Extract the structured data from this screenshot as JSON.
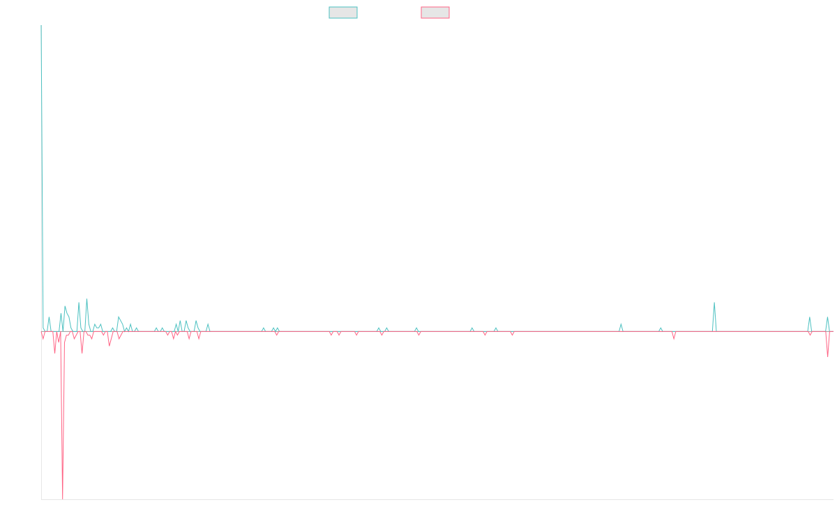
{
  "chart_data": {
    "type": "line",
    "title": "",
    "xlabel": "",
    "ylabel": "",
    "grid": false,
    "legend": "top-center",
    "ylim": [
      -46,
      84
    ],
    "series": [
      {
        "name": "",
        "color": "#4bc0c0",
        "fill": "#e6e6e6",
        "values": [
          84,
          1,
          0,
          0,
          4,
          0,
          0,
          0,
          0,
          0,
          5,
          0,
          7,
          5,
          4,
          1,
          0,
          0,
          0,
          8,
          1,
          0,
          0,
          9,
          2,
          0,
          0,
          2,
          1,
          1,
          2,
          0,
          0,
          0,
          0,
          0,
          1,
          0,
          0,
          4,
          3,
          2,
          0,
          1,
          0,
          2,
          0,
          0,
          1,
          0,
          0,
          0,
          0,
          0,
          0,
          0,
          0,
          0,
          1,
          0,
          0,
          1,
          0,
          0,
          0,
          0,
          0,
          0,
          2,
          0,
          3,
          0,
          0,
          3,
          1,
          0,
          0,
          0,
          3,
          1,
          0,
          0,
          0,
          0,
          2,
          0,
          0,
          0,
          0,
          0,
          0,
          0,
          0,
          0,
          0,
          0,
          0,
          0,
          0,
          0,
          0,
          0,
          0,
          0,
          0,
          0,
          0,
          0,
          0,
          0,
          0,
          0,
          1,
          0,
          0,
          0,
          0,
          1,
          0,
          1,
          0,
          0,
          0,
          0,
          0,
          0,
          0,
          0,
          0,
          0,
          0,
          0,
          0,
          0,
          0,
          0,
          0,
          0,
          0,
          0,
          0,
          0,
          0,
          0,
          0,
          0,
          0,
          0,
          0,
          0,
          0,
          0,
          0,
          0,
          0,
          0,
          0,
          0,
          0,
          0,
          0,
          0,
          0,
          0,
          0,
          0,
          0,
          0,
          0,
          0,
          1,
          0,
          0,
          0,
          1,
          0,
          0,
          0,
          0,
          0,
          0,
          0,
          0,
          0,
          0,
          0,
          0,
          0,
          0,
          1,
          0,
          0,
          0,
          0,
          0,
          0,
          0,
          0,
          0,
          0,
          0,
          0,
          0,
          0,
          0,
          0,
          0,
          0,
          0,
          0,
          0,
          0,
          0,
          0,
          0,
          0,
          0,
          1,
          0,
          0,
          0,
          0,
          0,
          0,
          0,
          0,
          0,
          0,
          0,
          1,
          0,
          0,
          0,
          0,
          0,
          0,
          0,
          0,
          0,
          0,
          0,
          0,
          0,
          0,
          0,
          0,
          0,
          0,
          0,
          0,
          0,
          0,
          0,
          0,
          0,
          0,
          0,
          0,
          0,
          0,
          0,
          0,
          0,
          0,
          0,
          0,
          0,
          0,
          0,
          0,
          0,
          0,
          0,
          0,
          0,
          0,
          0,
          0,
          0,
          0,
          0,
          0,
          0,
          0,
          0,
          0,
          0,
          0,
          0,
          0,
          0,
          0,
          2,
          0,
          0,
          0,
          0,
          0,
          0,
          0,
          0,
          0,
          0,
          0,
          0,
          0,
          0,
          0,
          0,
          0,
          0,
          0,
          1,
          0,
          0,
          0,
          0,
          0,
          0,
          0,
          0,
          0,
          0,
          0,
          0,
          0,
          0,
          0,
          0,
          0,
          0,
          0,
          0,
          0,
          0,
          0,
          0,
          0,
          0,
          8,
          0,
          0,
          0,
          0,
          0,
          0,
          0,
          0,
          0,
          0,
          0,
          0,
          0,
          0,
          0,
          0,
          0,
          0,
          0,
          0,
          0,
          0,
          0,
          0,
          0,
          0,
          0,
          0,
          0,
          0,
          0,
          0,
          0,
          0,
          0,
          0,
          0,
          0,
          0,
          0,
          0,
          0,
          0,
          0,
          0,
          0,
          0,
          4,
          0,
          0,
          0,
          0,
          0,
          0,
          0,
          0,
          4,
          0,
          0,
          0
        ]
      },
      {
        "name": "",
        "color": "#ff6384",
        "fill": "#e6e6e6",
        "values": [
          0,
          -2,
          0,
          0,
          0,
          0,
          0,
          -6,
          0,
          -3,
          0,
          -46,
          -3,
          -1,
          -1,
          0,
          0,
          -2,
          -1,
          0,
          0,
          -6,
          0,
          0,
          -1,
          -1,
          -2,
          0,
          0,
          0,
          0,
          0,
          -1,
          0,
          0,
          -4,
          -2,
          0,
          0,
          0,
          -2,
          -1,
          0,
          0,
          0,
          0,
          0,
          0,
          0,
          0,
          0,
          0,
          0,
          0,
          0,
          0,
          0,
          0,
          0,
          0,
          0,
          0,
          0,
          0,
          0,
          -1,
          0,
          0,
          -2,
          0,
          -1,
          0,
          0,
          0,
          0,
          0,
          -2,
          0,
          0,
          0,
          0,
          -2,
          0,
          0,
          0,
          0,
          0,
          0,
          0,
          0,
          0,
          0,
          0,
          0,
          0,
          0,
          0,
          0,
          0,
          0,
          0,
          0,
          0,
          0,
          0,
          0,
          0,
          0,
          0,
          0,
          0,
          0,
          0,
          0,
          0,
          0,
          0,
          0,
          0,
          0,
          0,
          -1,
          0,
          0,
          0,
          0,
          0,
          0,
          0,
          0,
          0,
          0,
          0,
          0,
          0,
          0,
          0,
          0,
          0,
          0,
          0,
          0,
          0,
          0,
          0,
          0,
          0,
          0,
          0,
          -1,
          0,
          0,
          0,
          -1,
          0,
          0,
          0,
          0,
          0,
          0,
          0,
          0,
          -1,
          0,
          0,
          0,
          0,
          0,
          0,
          0,
          0,
          0,
          0,
          0,
          0,
          -1,
          0,
          0,
          0,
          0,
          0,
          0,
          0,
          0,
          0,
          0,
          0,
          0,
          0,
          0,
          0,
          0,
          0,
          0,
          -1,
          0,
          0,
          0,
          0,
          0,
          0,
          0,
          0,
          0,
          0,
          0,
          0,
          0,
          0,
          0,
          0,
          0,
          0,
          0,
          0,
          0,
          0,
          0,
          0,
          0,
          0,
          0,
          0,
          0,
          0,
          0,
          0,
          0,
          -1,
          0,
          0,
          0,
          0,
          0,
          0,
          0,
          0,
          0,
          0,
          0,
          0,
          0,
          -1,
          0,
          0,
          0,
          0,
          0,
          0,
          0,
          0,
          0,
          0,
          0,
          0,
          0,
          0,
          0,
          0,
          0,
          0,
          0,
          0,
          0,
          0,
          0,
          0,
          0,
          0,
          0,
          0,
          0,
          0,
          0,
          0,
          0,
          0,
          0,
          0,
          0,
          0,
          0,
          0,
          0,
          0,
          0,
          0,
          0,
          0,
          0,
          0,
          0,
          0,
          0,
          0,
          0,
          0,
          0,
          0,
          0,
          0,
          0,
          0,
          0,
          0,
          0,
          0,
          0,
          0,
          0,
          0,
          0,
          0,
          0,
          0,
          0,
          0,
          0,
          0,
          0,
          0,
          0,
          0,
          0,
          0,
          -2,
          0,
          0,
          0,
          0,
          0,
          0,
          0,
          0,
          0,
          0,
          0,
          0,
          0,
          0,
          0,
          0,
          0,
          0,
          0,
          0,
          0,
          0,
          0,
          0,
          0,
          0,
          0,
          0,
          0,
          0,
          0,
          0,
          0,
          0,
          0,
          0,
          0,
          0,
          0,
          0,
          0,
          0,
          0,
          0,
          0,
          0,
          0,
          0,
          0,
          0,
          0,
          0,
          0,
          0,
          0,
          0,
          0,
          0,
          0,
          0,
          0,
          0,
          0,
          0,
          0,
          0,
          0,
          0,
          0,
          -1,
          0,
          0,
          0,
          0,
          0,
          0,
          0,
          0,
          -7,
          0,
          0,
          0
        ]
      }
    ]
  }
}
